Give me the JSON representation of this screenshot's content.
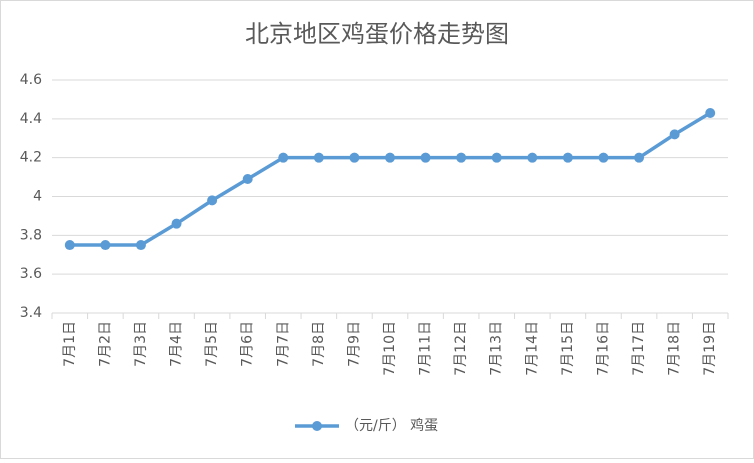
{
  "chart_data": {
    "type": "line",
    "title": "北京地区鸡蛋价格走势图",
    "categories": [
      "7月1日",
      "7月2日",
      "7月3日",
      "7月4日",
      "7月5日",
      "7月6日",
      "7月7日",
      "7月8日",
      "7月9日",
      "7月10日",
      "7月11日",
      "7月12日",
      "7月13日",
      "7月14日",
      "7月15日",
      "7月16日",
      "7月17日",
      "7月18日",
      "7月19日"
    ],
    "series": [
      {
        "name": "（元/斤） 鸡蛋",
        "color": "#5b9bd5",
        "values": [
          3.75,
          3.75,
          3.75,
          3.86,
          3.98,
          4.09,
          4.2,
          4.2,
          4.2,
          4.2,
          4.2,
          4.2,
          4.2,
          4.2,
          4.2,
          4.2,
          4.2,
          4.32,
          4.43
        ]
      }
    ],
    "ylim": [
      3.4,
      4.6
    ],
    "yticks": [
      3.4,
      3.6,
      3.8,
      4,
      4.2,
      4.4,
      4.6
    ],
    "grid": true,
    "legend": "bottom"
  }
}
